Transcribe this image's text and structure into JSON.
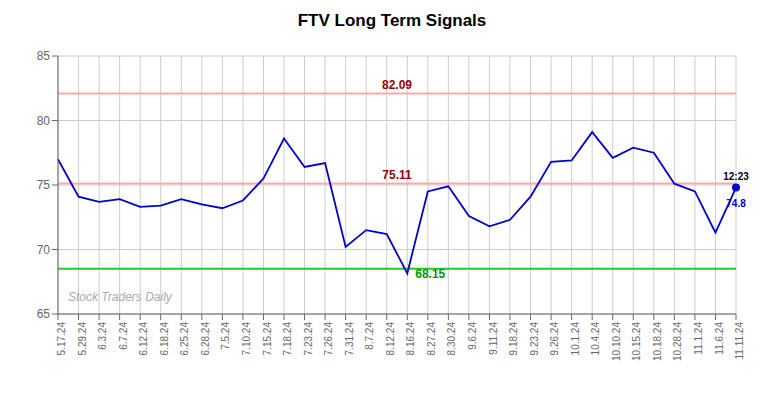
{
  "chart_data": {
    "type": "line",
    "title": "FTV Long Term Signals",
    "categories": [
      "5.17.24",
      "5.29.24",
      "6.3.24",
      "6.7.24",
      "6.12.24",
      "6.18.24",
      "6.25.24",
      "6.28.24",
      "7.5.24",
      "7.10.24",
      "7.15.24",
      "7.18.24",
      "7.23.24",
      "7.26.24",
      "7.31.24",
      "8.7.24",
      "8.12.24",
      "8.16.24",
      "8.27.24",
      "8.30.24",
      "9.6.24",
      "9.11.24",
      "9.18.24",
      "9.23.24",
      "9.26.24",
      "10.1.24",
      "10.4.24",
      "10.10.24",
      "10.15.24",
      "10.18.24",
      "10.28.24",
      "11.1.24",
      "11.6.24",
      "11.11.24"
    ],
    "values": [
      77.0,
      74.1,
      73.7,
      73.9,
      73.3,
      73.4,
      73.9,
      73.5,
      73.2,
      73.8,
      75.5,
      78.6,
      76.4,
      76.7,
      70.2,
      71.5,
      71.2,
      68.15,
      74.5,
      74.9,
      72.6,
      71.8,
      72.3,
      74.1,
      76.8,
      76.9,
      79.1,
      77.1,
      77.9,
      77.5,
      75.1,
      74.5,
      71.3,
      74.8
    ],
    "color": "#0000cc",
    "ylim": [
      65,
      85
    ],
    "yticks": [
      65,
      70,
      75,
      80,
      85
    ],
    "grid": true,
    "reference_lines": [
      {
        "value": 82.09,
        "label": "82.09",
        "color": "#ffaaaa",
        "label_color": "#990000"
      },
      {
        "value": 75.11,
        "label": "75.11",
        "color": "#ffaaaa",
        "label_color": "#990000"
      },
      {
        "value": 68.5,
        "color": "#22cc22"
      }
    ],
    "annotations": [
      {
        "text": "68.15",
        "x": "8.16.24",
        "y": 68.15,
        "color": "#009900"
      },
      {
        "text": "12:23",
        "x": "11.11.24",
        "y": 74.8,
        "color": "#000000"
      },
      {
        "text": "74.8",
        "x": "11.11.24",
        "y": 74.8,
        "color": "#0000cc",
        "marker": "dot"
      }
    ],
    "watermark": "Stock Traders Daily"
  }
}
